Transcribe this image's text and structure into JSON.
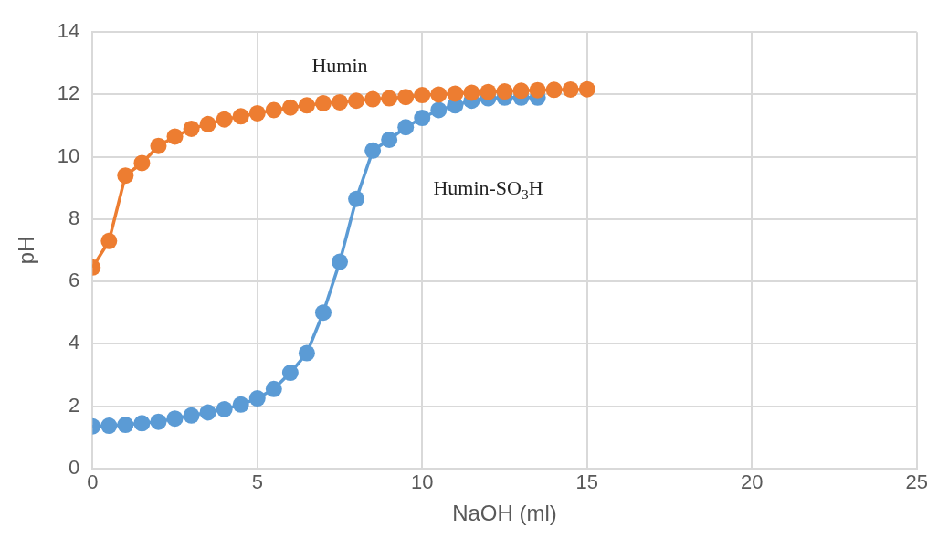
{
  "chart_data": {
    "type": "line",
    "xlabel": "NaOH (ml)",
    "ylabel": "pH",
    "xlim": [
      0,
      25
    ],
    "xticks": [
      0,
      5,
      10,
      15,
      20,
      25
    ],
    "ylim": [
      0,
      14
    ],
    "yticks": [
      0,
      2,
      4,
      6,
      8,
      10,
      12,
      14
    ],
    "grid": true,
    "legend": false,
    "marker": "circle",
    "line_style": "solid",
    "series": [
      {
        "name": "Humin",
        "color": "#ed7d31",
        "x": [
          0,
          0.5,
          1,
          1.5,
          2,
          2.5,
          3,
          3.5,
          4,
          4.5,
          5,
          5.5,
          6,
          6.5,
          7,
          7.5,
          8,
          8.5,
          9,
          9.5,
          10,
          10.5,
          11,
          11.5,
          12,
          12.5,
          13,
          13.5,
          14,
          14.5,
          15
        ],
        "values": [
          6.45,
          7.3,
          9.4,
          9.8,
          10.35,
          10.65,
          10.9,
          11.05,
          11.2,
          11.3,
          11.4,
          11.5,
          11.58,
          11.65,
          11.72,
          11.75,
          11.8,
          11.85,
          11.88,
          11.92,
          11.98,
          12.0,
          12.03,
          12.06,
          12.08,
          12.1,
          12.12,
          12.14,
          12.15,
          12.16,
          12.17
        ]
      },
      {
        "name": "Humin-SO$_{3}$H",
        "color": "#5b9bd5",
        "x": [
          0,
          0.5,
          1,
          1.5,
          2,
          2.5,
          3,
          3.5,
          4,
          4.5,
          5,
          5.5,
          6,
          6.5,
          7,
          7.5,
          8,
          8.5,
          9,
          9.5,
          10,
          10.5,
          11,
          11.5,
          12,
          12.5,
          13,
          13.5
        ],
        "values": [
          1.35,
          1.37,
          1.4,
          1.45,
          1.5,
          1.6,
          1.7,
          1.8,
          1.9,
          2.05,
          2.25,
          2.55,
          3.07,
          3.7,
          5.0,
          6.63,
          8.65,
          10.2,
          10.55,
          10.95,
          11.25,
          11.5,
          11.65,
          11.8,
          11.88,
          11.9,
          11.9,
          11.9
        ]
      }
    ]
  }
}
